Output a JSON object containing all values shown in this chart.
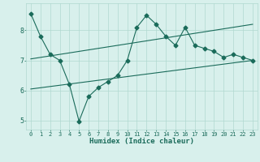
{
  "xlabel": "Humidex (Indice chaleur)",
  "bg_color": "#d8f0ec",
  "line_color": "#1a6b5a",
  "grid_color": "#b0d8d0",
  "xlim": [
    -0.5,
    23.5
  ],
  "ylim": [
    4.7,
    8.9
  ],
  "yticks": [
    5,
    6,
    7,
    8
  ],
  "xticks": [
    0,
    1,
    2,
    3,
    4,
    5,
    6,
    7,
    8,
    9,
    10,
    11,
    12,
    13,
    14,
    15,
    16,
    17,
    18,
    19,
    20,
    21,
    22,
    23
  ],
  "main_y": [
    8.55,
    7.8,
    7.2,
    7.0,
    6.2,
    4.98,
    5.8,
    6.1,
    6.3,
    6.5,
    7.0,
    8.1,
    8.5,
    8.2,
    7.8,
    7.5,
    8.1,
    7.5,
    7.4,
    7.3,
    7.1,
    7.2,
    7.1,
    7.0
  ],
  "upper_line_x": [
    0,
    23
  ],
  "upper_line_y": [
    7.05,
    8.2
  ],
  "lower_line_x": [
    0,
    23
  ],
  "lower_line_y": [
    6.05,
    7.0
  ],
  "marker": "D",
  "markersize": 2.5,
  "linewidth": 0.8
}
